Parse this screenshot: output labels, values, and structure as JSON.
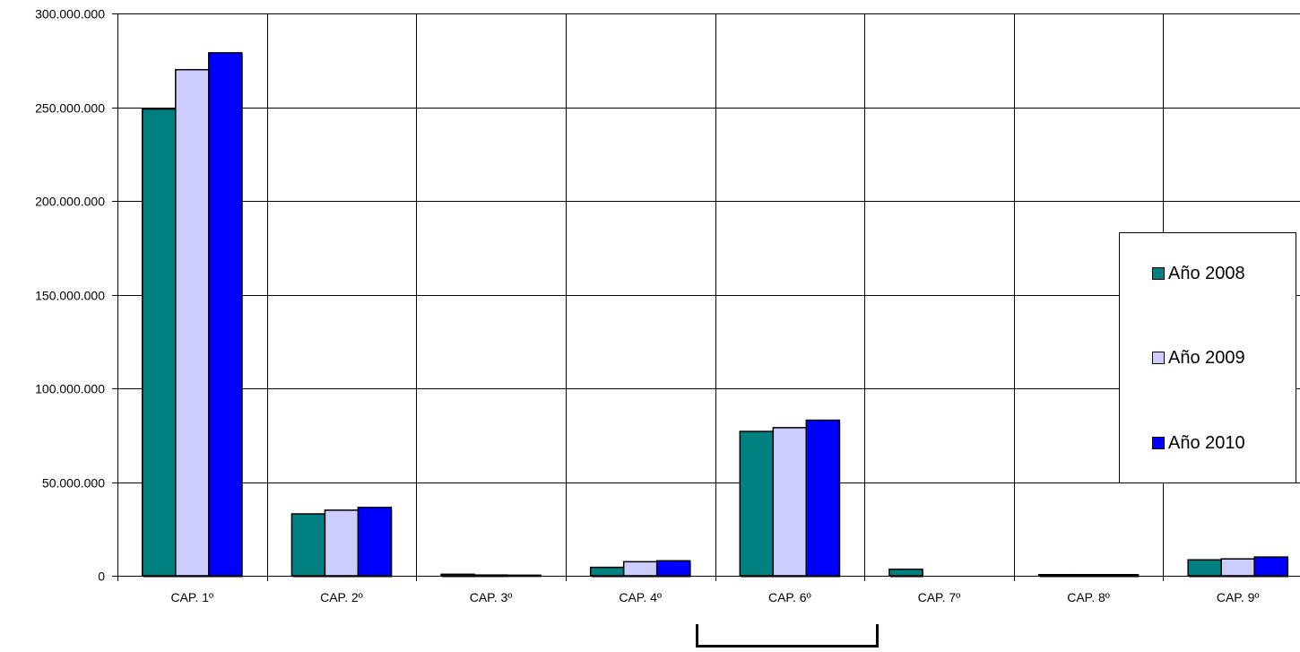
{
  "chart_data": {
    "type": "bar",
    "title": "",
    "xlabel": "",
    "ylabel": "",
    "categories": [
      "CAP. 1º",
      "CAP. 2º",
      "CAP. 3º",
      "CAP. 4º",
      "CAP. 6º",
      "CAP. 7º",
      "CAP. 8º",
      "CAP. 9º"
    ],
    "series": [
      {
        "name": "Año 2008",
        "color": "#008080",
        "values": [
          249000000,
          33000000,
          800000,
          4500000,
          77000000,
          3500000,
          600000,
          8500000
        ]
      },
      {
        "name": "Año 2009",
        "color": "#CCCCFF",
        "values": [
          270000000,
          35000000,
          400000,
          7500000,
          79000000,
          0,
          600000,
          9000000
        ]
      },
      {
        "name": "Año 2010",
        "color": "#0000FF",
        "values": [
          279000000,
          36500000,
          300000,
          8000000,
          83000000,
          0,
          600000,
          10000000
        ]
      }
    ],
    "ylim": [
      0,
      300000000
    ],
    "yticks": [
      0,
      50000000,
      100000000,
      150000000,
      200000000,
      250000000,
      300000000
    ],
    "ytick_labels": [
      "0",
      "50.000.000",
      "100.000.000",
      "150.000.000",
      "200.000.000",
      "250.000.000",
      "300.000.000"
    ],
    "grid": true,
    "legend_position": "right"
  }
}
